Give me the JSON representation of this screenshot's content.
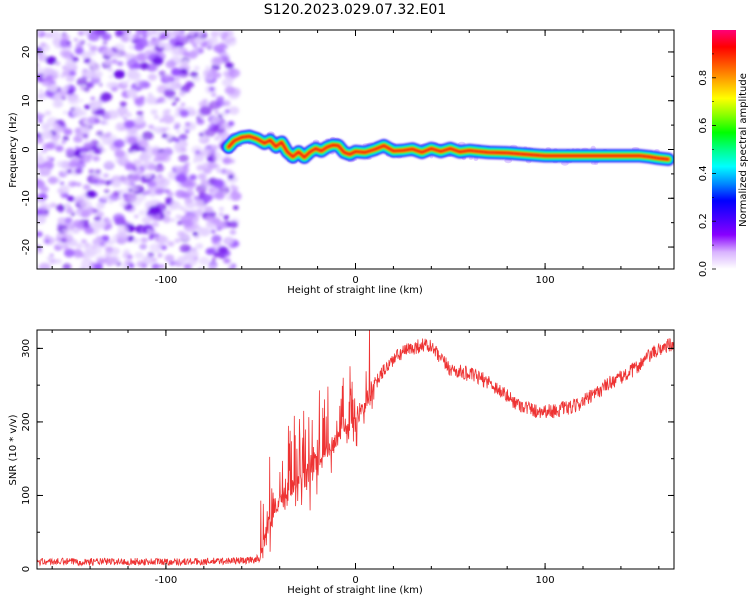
{
  "figure": {
    "title": "S120.2023.029.07.32.E01"
  },
  "chart_data": [
    {
      "type": "heatmap",
      "xlabel": "Height of straight line (km)",
      "ylabel": "Frequency (Hz)",
      "xlim": [
        -168,
        168
      ],
      "ylim": [
        -24.5,
        24.5
      ],
      "xticks": [
        -100,
        0,
        100
      ],
      "yticks": [
        -20,
        -10,
        0,
        10,
        20
      ],
      "noise_region_x": [
        -168,
        -63
      ],
      "signal_start_x": -67,
      "ridge": {
        "x": [
          -67,
          -64,
          -60,
          -56,
          -52,
          -48,
          -45,
          -42,
          -39,
          -36,
          -33,
          -30,
          -27,
          -24,
          -21,
          -18,
          -15,
          -12,
          -9,
          -6,
          -3,
          0,
          5,
          10,
          15,
          20,
          25,
          30,
          35,
          40,
          45,
          50,
          55,
          60,
          65,
          70,
          80,
          90,
          100,
          110,
          120,
          130,
          140,
          150,
          155,
          160,
          165
        ],
        "y": [
          0.5,
          1.8,
          2.5,
          2.7,
          2.2,
          1.3,
          1.9,
          0.6,
          1.5,
          -0.5,
          -1.5,
          -0.5,
          -1.6,
          -0.5,
          0.2,
          -0.3,
          0.5,
          0.9,
          0.8,
          -0.6,
          -1.0,
          -0.4,
          -0.6,
          0.0,
          0.8,
          -0.3,
          -0.2,
          0.1,
          -0.6,
          0.2,
          -0.4,
          0.2,
          -0.5,
          -0.2,
          -0.4,
          -0.6,
          -0.7,
          -1.0,
          -1.3,
          -1.3,
          -1.3,
          -1.3,
          -1.3,
          -1.3,
          -1.5,
          -1.8,
          -2.0
        ]
      },
      "colorbar": {
        "label": "Normalized spectral amplitude",
        "range": [
          0,
          1
        ],
        "ticks": [
          0.0,
          0.2,
          0.4,
          0.6,
          0.8
        ],
        "colors": [
          "#ffffff",
          "#d9b3ff",
          "#8800ff",
          "#4400ff",
          "#0000ff",
          "#0088ff",
          "#00ffff",
          "#00ff88",
          "#00ff00",
          "#88ff00",
          "#ffff00",
          "#ffaa00",
          "#ff5500",
          "#ff0000",
          "#ff0077"
        ]
      }
    },
    {
      "type": "line",
      "xlabel": "Height of straight line (km)",
      "ylabel": "SNR (10 * v/v)",
      "xlim": [
        -168,
        168
      ],
      "ylim": [
        0,
        325
      ],
      "xticks": [
        -100,
        0,
        100
      ],
      "yticks": [
        0,
        100,
        200,
        300
      ],
      "color": "#ee3333",
      "series": [
        {
          "x": [
            -168,
            -120,
            -80,
            -55,
            -50,
            -48,
            -45,
            -40,
            -35,
            -30,
            -25,
            -20,
            -15,
            -10,
            -5,
            0,
            5,
            10,
            15,
            20,
            25,
            30,
            35,
            40,
            45,
            50,
            55,
            60,
            65,
            70,
            75,
            80,
            85,
            90,
            95,
            100,
            105,
            110,
            115,
            120,
            125,
            130,
            135,
            140,
            145,
            150,
            155,
            160,
            165,
            168
          ],
          "y": [
            10,
            10,
            10,
            12,
            15,
            40,
            70,
            90,
            105,
            120,
            135,
            150,
            160,
            175,
            190,
            200,
            225,
            250,
            270,
            285,
            295,
            300,
            305,
            302,
            285,
            272,
            268,
            265,
            260,
            255,
            245,
            235,
            225,
            220,
            215,
            215,
            215,
            218,
            220,
            228,
            235,
            245,
            255,
            260,
            268,
            278,
            290,
            298,
            305,
            300
          ]
        }
      ]
    }
  ]
}
